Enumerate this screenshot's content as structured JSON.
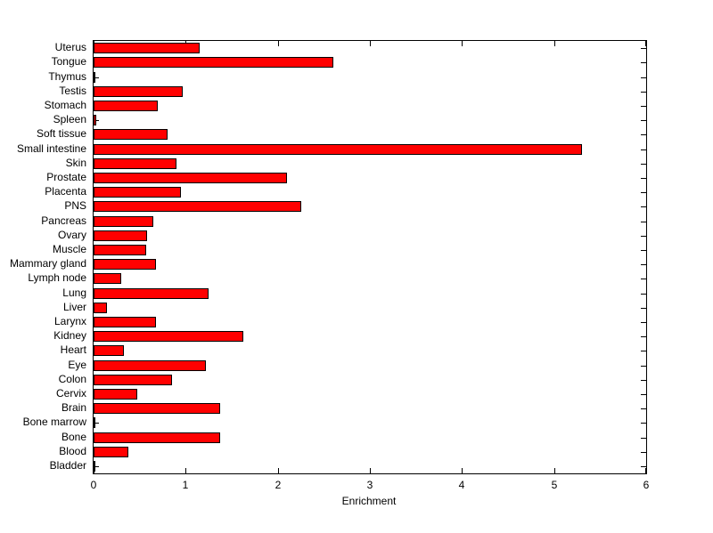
{
  "chart_data": {
    "type": "bar",
    "orientation": "horizontal",
    "title": "",
    "xlabel": "Enrichment",
    "ylabel": "",
    "xlim": [
      0,
      6
    ],
    "xticks": [
      0,
      1,
      2,
      3,
      4,
      5,
      6
    ],
    "grid": false,
    "bar_color": "#ff0000",
    "bar_edge_color": "#000000",
    "background": "#ffffff",
    "categories_top_to_bottom": [
      "Uterus",
      "Tongue",
      "Thymus",
      "Testis",
      "Stomach",
      "Spleen",
      "Soft tissue",
      "Small intestine",
      "Skin",
      "Prostate",
      "Placenta",
      "PNS",
      "Pancreas",
      "Ovary",
      "Muscle",
      "Mammary gland",
      "Lymph node",
      "Lung",
      "Liver",
      "Larynx",
      "Kidney",
      "Heart",
      "Eye",
      "Colon",
      "Cervix",
      "Brain",
      "Bone marrow",
      "Bone",
      "Blood",
      "Bladder"
    ],
    "values_top_to_bottom": [
      1.15,
      2.6,
      0.02,
      0.97,
      0.7,
      0.03,
      0.8,
      5.3,
      0.9,
      2.1,
      0.95,
      2.25,
      0.65,
      0.58,
      0.57,
      0.68,
      0.3,
      1.25,
      0.15,
      0.68,
      1.63,
      0.33,
      1.22,
      0.85,
      0.47,
      1.37,
      0.02,
      1.37,
      0.38,
      0.02
    ]
  }
}
